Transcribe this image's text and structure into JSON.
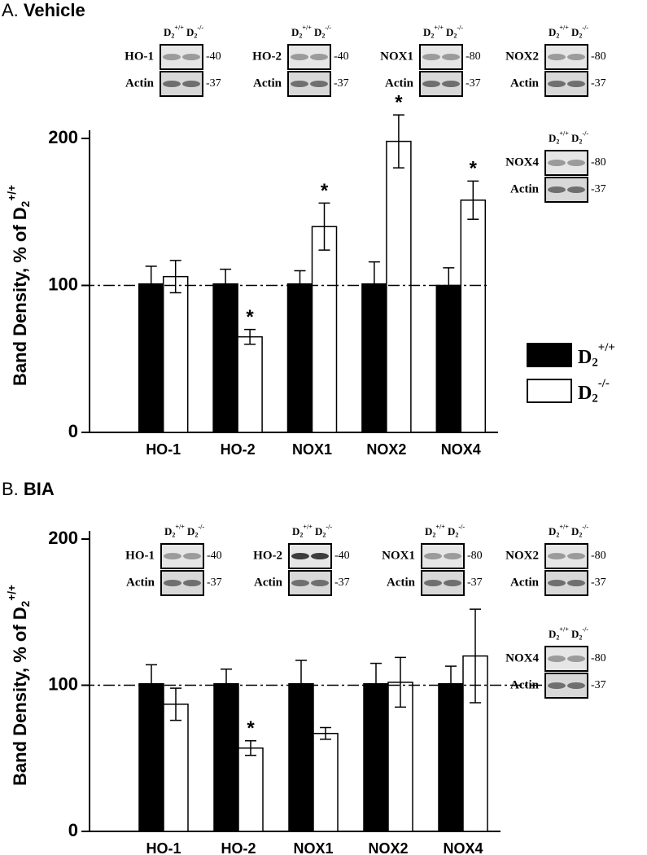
{
  "chart_data": [
    {
      "type": "bar",
      "title": "A. Vehicle",
      "y_label": "Band Density, % of D2+/+",
      "categories": [
        "HO-1",
        "HO-2",
        "NOX1",
        "NOX2",
        "NOX4"
      ],
      "series": [
        {
          "name": "D2+/+",
          "color": "#000000",
          "values": [
            101,
            101,
            101,
            101,
            100
          ],
          "errors": [
            12,
            10,
            9,
            15,
            12
          ]
        },
        {
          "name": "D2-/-",
          "color": "#ffffff",
          "values": [
            106,
            65,
            140,
            198,
            158
          ],
          "errors": [
            11,
            5,
            16,
            18,
            13
          ],
          "markers": [
            null,
            "*",
            "*",
            "*",
            "*"
          ]
        }
      ],
      "ylim": [
        0,
        200
      ],
      "yticks": [
        0,
        100,
        200
      ],
      "reference_line": 100,
      "legend": "right",
      "lanes": [
        "D2+/+",
        "D2-/-"
      ],
      "blots": [
        {
          "target": "HO-1",
          "target_mw": "-40",
          "control": "Actin",
          "control_mw": "-37"
        },
        {
          "target": "HO-2",
          "target_mw": "-40",
          "control": "Actin",
          "control_mw": "-37"
        },
        {
          "target": "NOX1",
          "target_mw": "-80",
          "control": "Actin",
          "control_mw": "-37"
        },
        {
          "target": "NOX2",
          "target_mw": "-80",
          "control": "Actin",
          "control_mw": "-37"
        },
        {
          "target": "NOX4",
          "target_mw": "-80",
          "control": "Actin",
          "control_mw": "-37"
        }
      ]
    },
    {
      "type": "bar",
      "title": "B. BIA",
      "y_label": "Band Density, % of D2+/+",
      "categories": [
        "HO-1",
        "HO-2",
        "NOX1",
        "NOX2",
        "NOX4"
      ],
      "series": [
        {
          "color": "#000000",
          "values": [
            101,
            101,
            101,
            101,
            101
          ],
          "errors": [
            13,
            10,
            16,
            14,
            12
          ]
        },
        {
          "color": "#ffffff",
          "values": [
            87,
            57,
            67,
            102,
            120
          ],
          "errors": [
            11,
            5,
            4,
            17,
            32
          ],
          "markers": [
            null,
            "*",
            null,
            null,
            null
          ]
        }
      ],
      "ylim": [
        0,
        200
      ],
      "yticks": [
        0,
        100,
        200
      ],
      "reference_line": 100,
      "lanes": [
        "D2+/+",
        "D2-/-"
      ],
      "blots": [
        {
          "target": "HO-1",
          "target_mw": "-40",
          "control": "Actin",
          "control_mw": "-37"
        },
        {
          "target": "HO-2",
          "target_mw": "-40",
          "control": "Actin",
          "control_mw": "-37"
        },
        {
          "target": "NOX1",
          "target_mw": "-80",
          "control": "Actin",
          "control_mw": "-37"
        },
        {
          "target": "NOX2",
          "target_mw": "-80",
          "control": "Actin",
          "control_mw": "-37"
        },
        {
          "target": "NOX4",
          "target_mw": "-80",
          "control": "Actin",
          "control_mw": "-37"
        }
      ]
    }
  ]
}
